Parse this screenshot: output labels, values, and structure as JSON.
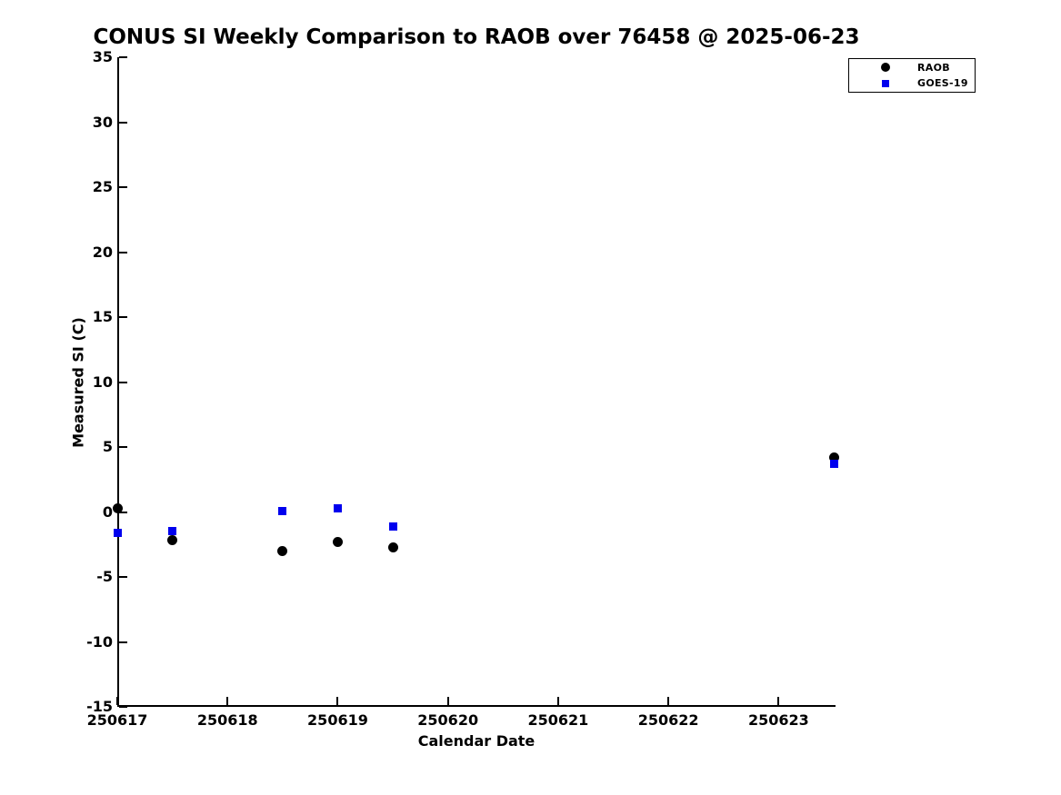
{
  "chart_data": {
    "type": "scatter",
    "title": "CONUS SI Weekly Comparison to RAOB over 76458 @ 2025-06-23",
    "xlabel": "Calendar Date",
    "ylabel": "Measured SI (C)",
    "xlim": [
      250617,
      250623.5
    ],
    "ylim": [
      -15,
      35
    ],
    "x_ticks": [
      250617,
      250618,
      250619,
      250620,
      250621,
      250622,
      250623
    ],
    "x_tick_labels": [
      "250617",
      "250618",
      "250619",
      "250620",
      "250621",
      "250622",
      "250623"
    ],
    "y_ticks": [
      -15,
      -10,
      -5,
      0,
      5,
      10,
      15,
      20,
      25,
      30,
      35
    ],
    "y_tick_labels": [
      "-15",
      "-10",
      "-5",
      "0",
      "5",
      "10",
      "15",
      "20",
      "25",
      "30",
      "35"
    ],
    "grid": false,
    "legend_position": "top-right",
    "series": [
      {
        "name": "RAOB",
        "marker": "circle",
        "color": "#000000",
        "x": [
          250617.0,
          250617.5,
          250618.5,
          250619.0,
          250619.5,
          250623.5
        ],
        "y": [
          0.3,
          -2.2,
          -3.0,
          -2.3,
          -2.7,
          4.2
        ]
      },
      {
        "name": "GOES-19",
        "marker": "square",
        "color": "#0000ee",
        "x": [
          250617.0,
          250617.5,
          250618.5,
          250619.0,
          250619.5,
          250623.5
        ],
        "y": [
          -1.6,
          -1.5,
          0.1,
          0.3,
          -1.1,
          3.7
        ]
      }
    ]
  },
  "colors": {
    "background": "#ffffff",
    "axis": "#000000",
    "raob_marker": "#000000",
    "goes19_marker": "#0000ee"
  }
}
